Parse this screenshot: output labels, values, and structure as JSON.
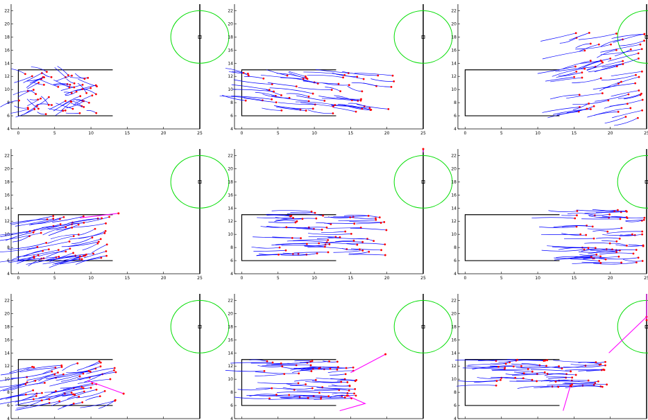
{
  "chart_data": {
    "type": "line",
    "layout": "3x3 grid of trajectory plots",
    "xlim": [
      -1,
      25
    ],
    "ylim": [
      4,
      23
    ],
    "xticks": [
      0,
      5,
      10,
      15,
      20,
      25
    ],
    "yticks": [
      4,
      6,
      8,
      10,
      12,
      14,
      16,
      18,
      20,
      22
    ],
    "colors": {
      "trajectories": "#0000ff",
      "agent_positions": "#ff0000",
      "highlighted_paths": "#ff00ff",
      "goal_circle": "#00dd00",
      "walls": "#000000"
    },
    "scene": {
      "room_box": {
        "x": [
          0,
          13
        ],
        "y": [
          6,
          13
        ]
      },
      "exit_wall_x": 25,
      "goal": {
        "cx": 25,
        "cy": 18,
        "r": 4
      }
    },
    "panels": [
      {
        "x_range": [
          0,
          11
        ],
        "y_range": [
          6.2,
          12.8
        ],
        "direction": "mixed",
        "highlight": []
      },
      {
        "x_range": [
          0,
          21
        ],
        "y_range": [
          6.2,
          12.8
        ],
        "direction": "right-down",
        "highlight": []
      },
      {
        "x_range": [
          15,
          25
        ],
        "y_range": [
          5.5,
          19
        ],
        "direction": "right-up",
        "highlight": []
      },
      {
        "x_range": [
          1.5,
          13
        ],
        "y_range": [
          6.2,
          13
        ],
        "direction": "right-up",
        "highlight": [
          [
            [
              8.5,
              12.5
            ],
            [
              13.8,
              13.2
            ]
          ]
        ]
      },
      {
        "x_range": [
          5,
          20
        ],
        "y_range": [
          6.8,
          13.6
        ],
        "direction": "right",
        "highlight": [
          [
            [
              25,
              22.5
            ],
            [
              25,
              23
            ]
          ]
        ]
      },
      {
        "x_range": [
          15,
          25
        ],
        "y_range": [
          5.3,
          14
        ],
        "direction": "right",
        "highlight": []
      },
      {
        "x_range": [
          1,
          13.5
        ],
        "y_range": [
          6.2,
          12.8
        ],
        "direction": "right-up",
        "highlight": [
          [
            [
              9.5,
              9.8
            ],
            [
              14.5,
              7.8
            ]
          ]
        ]
      },
      {
        "x_range": [
          3,
          16
        ],
        "y_range": [
          7,
          12.8
        ],
        "direction": "right",
        "highlight": [
          [
            [
              15,
              11
            ],
            [
              19.8,
              13.8
            ]
          ],
          [
            [
              13.5,
              5.2
            ],
            [
              17,
              6.3
            ],
            [
              14.5,
              7.5
            ]
          ]
        ]
      },
      {
        "x_range": [
          4,
          20
        ],
        "y_range": [
          8.5,
          13
        ],
        "direction": "right",
        "highlight": [
          [
            [
              19.8,
              14
            ],
            [
              25,
              19.5
            ]
          ],
          [
            [
              13.5,
              5.2
            ],
            [
              14.5,
              9
            ]
          ],
          [
            [
              25,
              23
            ],
            [
              25,
              19
            ]
          ]
        ]
      }
    ]
  }
}
